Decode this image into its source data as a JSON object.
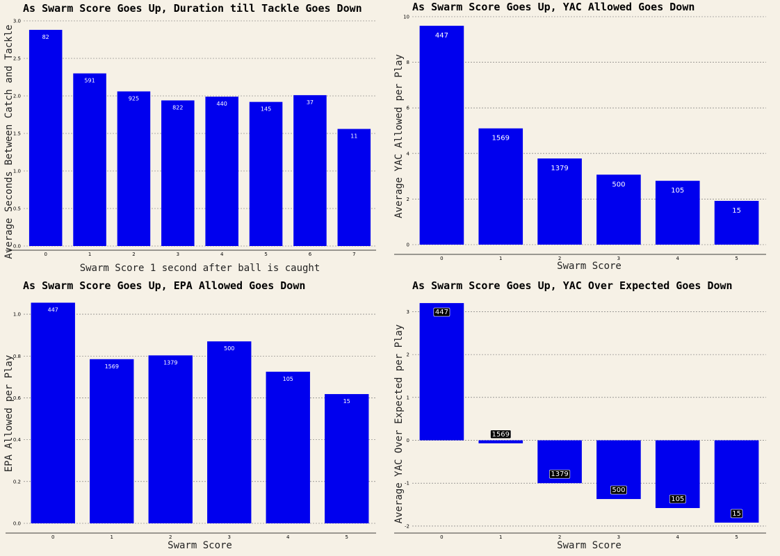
{
  "colors": {
    "background": "#f6f1e6",
    "bar": "#0000ee",
    "label_box": "#000000"
  },
  "chart_data": [
    {
      "type": "bar",
      "title": "As Swarm Score Goes Up, Duration till Tackle Goes Down",
      "xlabel": "Swarm Score 1 second after ball is caught",
      "ylabel": "Average Seconds Between Catch and Tackle",
      "categories": [
        "0",
        "1",
        "2",
        "3",
        "4",
        "5",
        "6",
        "7"
      ],
      "values": [
        2.88,
        2.3,
        2.06,
        1.94,
        1.99,
        1.92,
        2.01,
        1.56
      ],
      "bar_labels": [
        "82",
        "591",
        "925",
        "822",
        "440",
        "145",
        "37",
        "11"
      ],
      "yticks": [
        "0.0",
        "0.5",
        "1.0",
        "1.5",
        "2.0",
        "2.5",
        "3.0"
      ],
      "ylim": [
        0,
        3.0
      ]
    },
    {
      "type": "bar",
      "title": "As Swarm Score Goes Up, YAC Allowed Goes Down",
      "xlabel": "Swarm Score",
      "ylabel": "Average YAC Allowed per Play",
      "categories": [
        "0",
        "1",
        "2",
        "3",
        "4",
        "5"
      ],
      "values": [
        9.6,
        5.1,
        3.78,
        3.07,
        2.8,
        1.92
      ],
      "bar_labels": [
        "447",
        "1569",
        "1379",
        "500",
        "105",
        "15"
      ],
      "yticks": [
        "0",
        "2",
        "4",
        "6",
        "8",
        "10"
      ],
      "ylim": [
        0,
        10
      ]
    },
    {
      "type": "bar",
      "title": "As Swarm Score Goes Up, EPA Allowed Goes Down",
      "xlabel": "Swarm Score",
      "ylabel": "EPA Allowed per Play",
      "categories": [
        "0",
        "1",
        "2",
        "3",
        "4",
        "5"
      ],
      "values": [
        1.055,
        0.785,
        0.803,
        0.87,
        0.725,
        0.618
      ],
      "bar_labels": [
        "447",
        "1569",
        "1379",
        "500",
        "105",
        "15"
      ],
      "yticks": [
        "0.0",
        "0.2",
        "0.4",
        "0.6",
        "0.8",
        "1.0"
      ],
      "ylim": [
        0,
        1.08
      ]
    },
    {
      "type": "bar",
      "title": "As Swarm Score Goes Up, YAC Over Expected Goes Down",
      "xlabel": "Swarm Score",
      "ylabel": "Average YAC Over Expected per Play",
      "categories": [
        "0",
        "1",
        "2",
        "3",
        "4",
        "5"
      ],
      "values": [
        3.2,
        -0.07,
        -1.0,
        -1.37,
        -1.58,
        -1.92
      ],
      "bar_labels": [
        "447",
        "1569",
        "1379",
        "500",
        "105",
        "15"
      ],
      "yticks": [
        "-2",
        "-1",
        "0",
        "1",
        "2",
        "3"
      ],
      "ylim": [
        -2.05,
        3.25
      ],
      "labels_boxed": true
    }
  ]
}
